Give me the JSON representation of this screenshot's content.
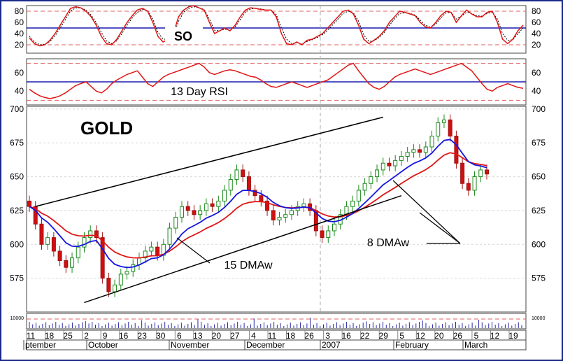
{
  "chart_data": {
    "type": "candlestick",
    "title": "GOLD",
    "x_tick_labels": [
      "11",
      "18",
      "25",
      "2",
      "9",
      "16",
      "23",
      "30",
      "6",
      "13",
      "20",
      "27",
      "4",
      "11",
      "18",
      "26",
      "3",
      "16",
      "22",
      "29",
      "5",
      "12",
      "20",
      "26",
      "5",
      "12",
      "19"
    ],
    "month_labels": [
      "ptember",
      "October",
      "November",
      "December",
      "2007",
      "February",
      "March"
    ],
    "panels": {
      "so": {
        "label": "SO",
        "ylim": [
          5,
          90
        ],
        "ticks": [
          20,
          40,
          60,
          80
        ],
        "overbought": 80,
        "oversold": 20,
        "midline": 50,
        "series": [
          32,
          22,
          18,
          20,
          28,
          40,
          55,
          70,
          85,
          88,
          86,
          80,
          70,
          55,
          35,
          22,
          20,
          30,
          45,
          60,
          72,
          82,
          85,
          80,
          60,
          35,
          25,
          30,
          40,
          70,
          82,
          88,
          90,
          86,
          82,
          60,
          40,
          45,
          50,
          45,
          55,
          70,
          82,
          86,
          85,
          83,
          82,
          82,
          70,
          40,
          22,
          20,
          25,
          20,
          28,
          30,
          35,
          40,
          50,
          60,
          70,
          80,
          82,
          75,
          55,
          30,
          22,
          28,
          35,
          45,
          60,
          70,
          80,
          78,
          75,
          72,
          60,
          52,
          50,
          60,
          72,
          80,
          78,
          60,
          72,
          82,
          75,
          70,
          70,
          78,
          80,
          60,
          30,
          22,
          30,
          45,
          55
        ],
        "signal": [
          35,
          25,
          20,
          21,
          26,
          36,
          50,
          65,
          80,
          86,
          86,
          82,
          73,
          60,
          42,
          27,
          22,
          27,
          40,
          55,
          68,
          78,
          83,
          81,
          66,
          42,
          30,
          30,
          37,
          62,
          78,
          85,
          88,
          86,
          83,
          66,
          46,
          45,
          48,
          46,
          52,
          65,
          78,
          84,
          85,
          84,
          82,
          82,
          74,
          50,
          30,
          22,
          24,
          21,
          26,
          29,
          33,
          38,
          46,
          56,
          66,
          76,
          80,
          77,
          62,
          38,
          26,
          27,
          33,
          42,
          55,
          66,
          76,
          77,
          76,
          73,
          64,
          55,
          51,
          57,
          68,
          77,
          78,
          66,
          71,
          78,
          76,
          72,
          71,
          76,
          78,
          66,
          40,
          28,
          29,
          40,
          50
        ]
      },
      "rsi": {
        "label": "13 Day RSI",
        "ylim": [
          25,
          75
        ],
        "ticks": [
          40,
          60
        ],
        "overbought": 70,
        "oversold": 30,
        "midline": 50,
        "series": [
          42,
          38,
          35,
          33,
          32,
          33,
          35,
          38,
          42,
          46,
          48,
          50,
          45,
          40,
          38,
          42,
          48,
          52,
          55,
          58,
          60,
          62,
          55,
          48,
          45,
          50,
          55,
          58,
          60,
          62,
          64,
          66,
          68,
          70,
          66,
          60,
          58,
          60,
          62,
          63,
          62,
          60,
          58,
          56,
          55,
          52,
          48,
          45,
          44,
          46,
          48,
          50,
          48,
          46,
          44,
          46,
          48,
          50,
          52,
          56,
          60,
          64,
          68,
          70,
          62,
          55,
          48,
          44,
          42,
          45,
          50,
          55,
          58,
          60,
          62,
          64,
          62,
          60,
          58,
          60,
          62,
          64,
          66,
          68,
          70,
          66,
          62,
          55,
          48,
          42,
          40,
          44,
          46,
          48,
          46,
          44,
          43
        ]
      },
      "price": {
        "ylim": [
          550,
          702
        ],
        "ticks": [
          575,
          600,
          625,
          650,
          675,
          700
        ],
        "closes": [
          628,
          615,
          600,
          605,
          595,
          588,
          583,
          590,
          598,
          605,
          610,
          605,
          575,
          565,
          570,
          578,
          580,
          585,
          590,
          595,
          598,
          592,
          600,
          612,
          620,
          628,
          625,
          622,
          625,
          630,
          628,
          632,
          640,
          648,
          655,
          650,
          640,
          636,
          632,
          625,
          618,
          620,
          622,
          625,
          628,
          630,
          625,
          610,
          605,
          610,
          615,
          622,
          628,
          632,
          640,
          645,
          650,
          655,
          660,
          658,
          662,
          665,
          668,
          670,
          668,
          672,
          680,
          690,
          692,
          680,
          660,
          645,
          640,
          650,
          655,
          652
        ]
      },
      "volume": {
        "ylim": [
          0,
          10000
        ],
        "label": "10000"
      }
    },
    "series": [
      {
        "name": "8 DMAw",
        "color": "#1515e0"
      },
      {
        "name": "15 DMAw",
        "color": "#e01515"
      }
    ],
    "annotations": {
      "so_label": "SO",
      "rsi_label": "13 Day RSI",
      "gold_label": "GOLD",
      "dma15_label": "15 DMAw",
      "dma8_label": "8 DMAw"
    },
    "channel": {
      "upper": [
        [
          1,
          628
        ],
        [
          58,
          694
        ]
      ],
      "lower": [
        [
          9,
          557
        ],
        [
          61,
          636
        ]
      ]
    },
    "grid": "dashed-horizontal"
  }
}
